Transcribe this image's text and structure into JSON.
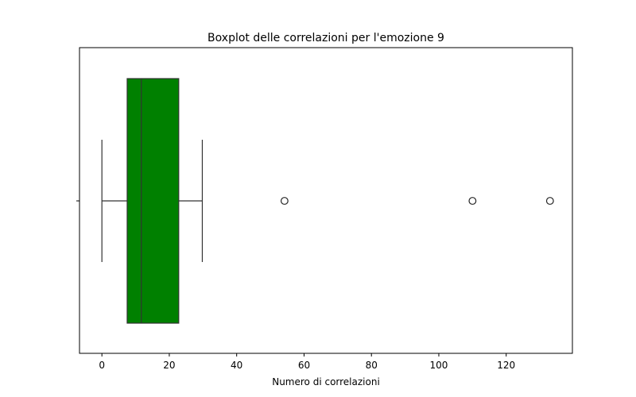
{
  "chart_data": {
    "type": "boxplot",
    "orientation": "horizontal",
    "title": "Boxplot delle correlazioni per l'emozione 9",
    "xlabel": "Numero di correlazioni",
    "ylabel": "",
    "xlim": [
      -6.65,
      139.65
    ],
    "xticks": [
      0,
      20,
      40,
      60,
      80,
      100,
      120
    ],
    "xtick_labels": [
      "0",
      "20",
      "40",
      "60",
      "80",
      "100",
      "120"
    ],
    "grid": false,
    "box": {
      "whisker_low": 0,
      "q1": 7.5,
      "median": 11.7,
      "q3": 22.8,
      "whisker_high": 29.8,
      "outliers": [
        54.2,
        110.0,
        133.0
      ]
    },
    "colors": {
      "box_fill": "#008000",
      "lines": "#333333",
      "outlier_edge": "#262626"
    }
  }
}
